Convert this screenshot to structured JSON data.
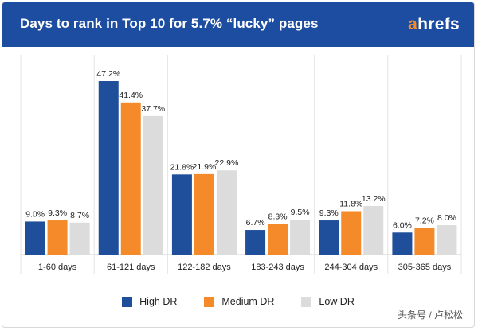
{
  "header": {
    "title": "Days to rank in Top 10 for 5.7% “lucky” pages",
    "logo_first": "a",
    "logo_rest": "hrefs"
  },
  "colors": {
    "header_bg": "#1d4da0",
    "high": "#1f4e9a",
    "medium": "#f58a2a",
    "low": "#dcdcdc"
  },
  "watermark": "头条号 / 卢松松",
  "chart_data": {
    "type": "bar",
    "title": "Days to rank in Top 10 for 5.7% “lucky” pages",
    "categories": [
      "1-60 days",
      "61-121 days",
      "122-182 days",
      "183-243 days",
      "244-304 days",
      "305-365 days"
    ],
    "series": [
      {
        "name": "High DR",
        "color": "#1f4e9a",
        "values": [
          9.0,
          47.2,
          21.8,
          6.7,
          9.3,
          6.0
        ],
        "labels": [
          "9.0%",
          "47.2%",
          "21.8%",
          "6.7%",
          "9.3%",
          "6.0%"
        ]
      },
      {
        "name": "Medium DR",
        "color": "#f58a2a",
        "values": [
          9.3,
          41.4,
          21.9,
          8.3,
          11.8,
          7.2
        ],
        "labels": [
          "9.3%",
          "41.4%",
          "21.9%",
          "8.3%",
          "11.8%",
          "7.2%"
        ]
      },
      {
        "name": "Low DR",
        "color": "#dcdcdc",
        "values": [
          8.7,
          37.7,
          22.9,
          9.5,
          13.2,
          8.0
        ],
        "labels": [
          "8.7%",
          "37.7%",
          "22.9%",
          "9.5%",
          "13.2%",
          "8.0%"
        ]
      }
    ],
    "ylim": [
      0,
      50
    ],
    "grid": false,
    "legend": "bottom"
  }
}
